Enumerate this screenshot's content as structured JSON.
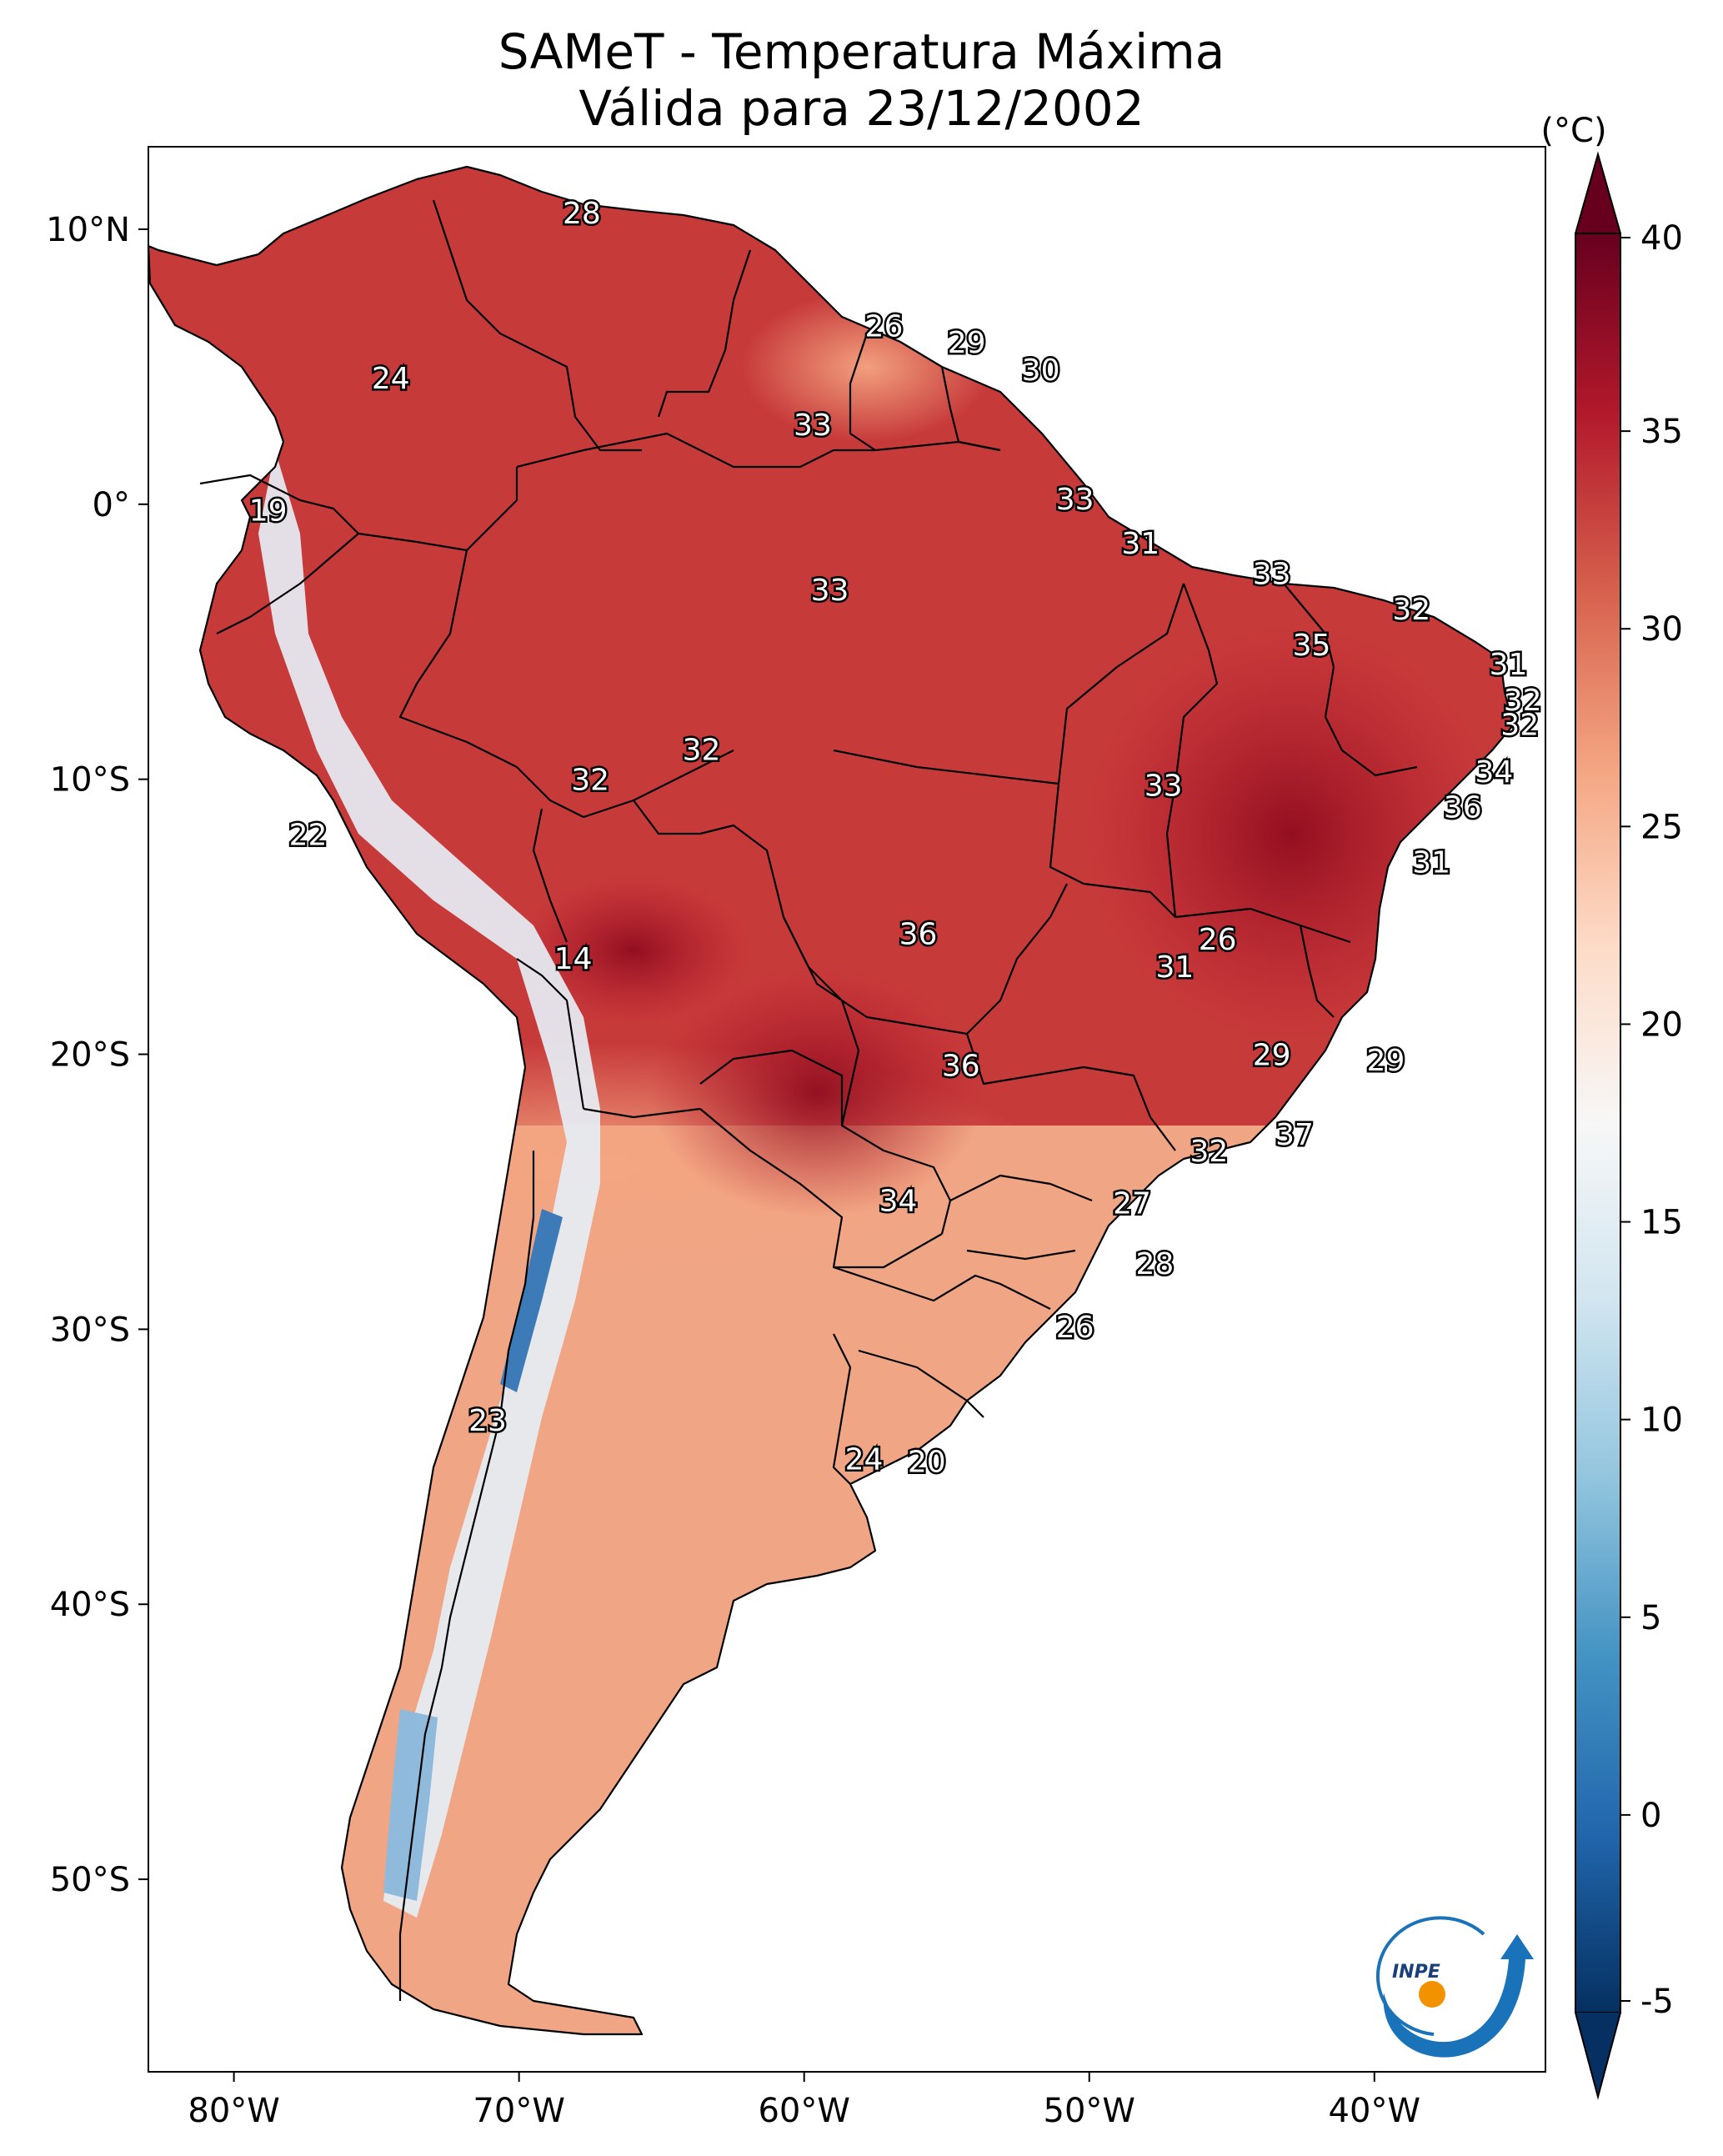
{
  "title": {
    "line1": "SAMeT - Temperatura Máxima",
    "line2": "Válida para 23/12/2002"
  },
  "map": {
    "lon_range": [
      -83,
      -34
    ],
    "lat_range": [
      -57,
      13
    ],
    "lon_ticks": [
      {
        "value": -80,
        "label": "80°W"
      },
      {
        "value": -70,
        "label": "70°W"
      },
      {
        "value": -60,
        "label": "60°W"
      },
      {
        "value": -50,
        "label": "50°W"
      },
      {
        "value": -40,
        "label": "40°W"
      }
    ],
    "lat_ticks": [
      {
        "value": 10,
        "label": "10°N"
      },
      {
        "value": 0,
        "label": "0°"
      },
      {
        "value": -10,
        "label": "10°S"
      },
      {
        "value": -20,
        "label": "20°S"
      },
      {
        "value": -30,
        "label": "30°S"
      },
      {
        "value": -40,
        "label": "40°S"
      },
      {
        "value": -50,
        "label": "50°S"
      }
    ],
    "labels": [
      {
        "lon": -67.8,
        "lat": 10.6,
        "text": "28"
      },
      {
        "lon": -57.2,
        "lat": 6.5,
        "text": "26"
      },
      {
        "lon": -54.3,
        "lat": 5.9,
        "text": "29"
      },
      {
        "lon": -51.7,
        "lat": 4.9,
        "text": "30"
      },
      {
        "lon": -74.5,
        "lat": 4.6,
        "text": "24"
      },
      {
        "lon": -59.7,
        "lat": 2.9,
        "text": "33"
      },
      {
        "lon": -78.8,
        "lat": -0.2,
        "text": "19"
      },
      {
        "lon": -50.5,
        "lat": 0.2,
        "text": "33"
      },
      {
        "lon": -48.2,
        "lat": -1.4,
        "text": "31"
      },
      {
        "lon": -59.1,
        "lat": -3.1,
        "text": "33"
      },
      {
        "lon": -43.6,
        "lat": -2.5,
        "text": "33"
      },
      {
        "lon": -38.7,
        "lat": -3.8,
        "text": "32"
      },
      {
        "lon": -42.2,
        "lat": -5.1,
        "text": "35"
      },
      {
        "lon": -35.3,
        "lat": -5.8,
        "text": "31"
      },
      {
        "lon": -34.8,
        "lat": -7.1,
        "text": "32"
      },
      {
        "lon": -34.9,
        "lat": -8.0,
        "text": "32"
      },
      {
        "lon": -63.6,
        "lat": -8.9,
        "text": "32"
      },
      {
        "lon": -67.5,
        "lat": -10.0,
        "text": "32"
      },
      {
        "lon": -35.8,
        "lat": -9.7,
        "text": "34"
      },
      {
        "lon": -47.4,
        "lat": -10.2,
        "text": "33"
      },
      {
        "lon": -36.9,
        "lat": -11.0,
        "text": "36"
      },
      {
        "lon": -77.4,
        "lat": -12.0,
        "text": "22"
      },
      {
        "lon": -38.0,
        "lat": -13.0,
        "text": "31"
      },
      {
        "lon": -56.0,
        "lat": -15.6,
        "text": "36"
      },
      {
        "lon": -45.5,
        "lat": -15.8,
        "text": "26"
      },
      {
        "lon": -47.0,
        "lat": -16.8,
        "text": "31"
      },
      {
        "lon": -68.1,
        "lat": -16.5,
        "text": "14"
      },
      {
        "lon": -43.6,
        "lat": -20.0,
        "text": "29"
      },
      {
        "lon": -39.6,
        "lat": -20.2,
        "text": "29"
      },
      {
        "lon": -54.5,
        "lat": -20.4,
        "text": "36"
      },
      {
        "lon": -42.8,
        "lat": -22.9,
        "text": "37"
      },
      {
        "lon": -45.8,
        "lat": -23.5,
        "text": "32"
      },
      {
        "lon": -56.7,
        "lat": -25.3,
        "text": "34"
      },
      {
        "lon": -48.5,
        "lat": -25.4,
        "text": "27"
      },
      {
        "lon": -47.7,
        "lat": -27.6,
        "text": "28"
      },
      {
        "lon": -50.5,
        "lat": -29.9,
        "text": "26"
      },
      {
        "lon": -71.1,
        "lat": -33.3,
        "text": "23"
      },
      {
        "lon": -57.9,
        "lat": -34.7,
        "text": "24"
      },
      {
        "lon": -55.7,
        "lat": -34.8,
        "text": "20"
      }
    ]
  },
  "colorbar": {
    "unit": "(°C)",
    "ticks": [
      {
        "value": 40,
        "label": "40"
      },
      {
        "value": 35,
        "label": "35"
      },
      {
        "value": 30,
        "label": "30"
      },
      {
        "value": 25,
        "label": "25"
      },
      {
        "value": 20,
        "label": "20"
      },
      {
        "value": 15,
        "label": "15"
      },
      {
        "value": 10,
        "label": "10"
      },
      {
        "value": 5,
        "label": "5"
      },
      {
        "value": 0,
        "label": "0"
      },
      {
        "value": -5,
        "label": "-5"
      }
    ],
    "range": [
      -5,
      40
    ],
    "colors": [
      "#053061",
      "#2166ac",
      "#4393c3",
      "#92c5de",
      "#d1e5f0",
      "#f7f7f7",
      "#fddbc7",
      "#f4a582",
      "#d6604d",
      "#b2182b",
      "#67001f"
    ]
  },
  "logo": {
    "text": "INPE",
    "ring_color": "#1a73b8",
    "dot_color": "#f39200"
  }
}
